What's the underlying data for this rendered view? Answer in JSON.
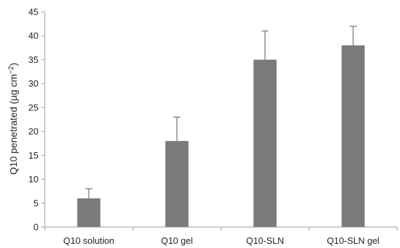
{
  "chart_data": {
    "type": "bar",
    "categories": [
      "Q10 solution",
      "Q10 gel",
      "Q10-SLN",
      "Q10-SLN gel"
    ],
    "values": [
      6,
      18,
      35,
      38
    ],
    "error_plus": [
      2,
      5,
      6,
      4
    ],
    "title": "",
    "xlabel": "",
    "ylabel_prefix": "Q10 penetrated (µg cm",
    "ylabel_sup": "−2",
    "ylabel_suffix": ")",
    "ylim": [
      0,
      45
    ],
    "yticks": [
      0,
      5,
      10,
      15,
      20,
      25,
      30,
      35,
      40,
      45
    ],
    "grid": false,
    "bar_color": "#7a7a7a",
    "axis_color": "#9a9a9a"
  }
}
